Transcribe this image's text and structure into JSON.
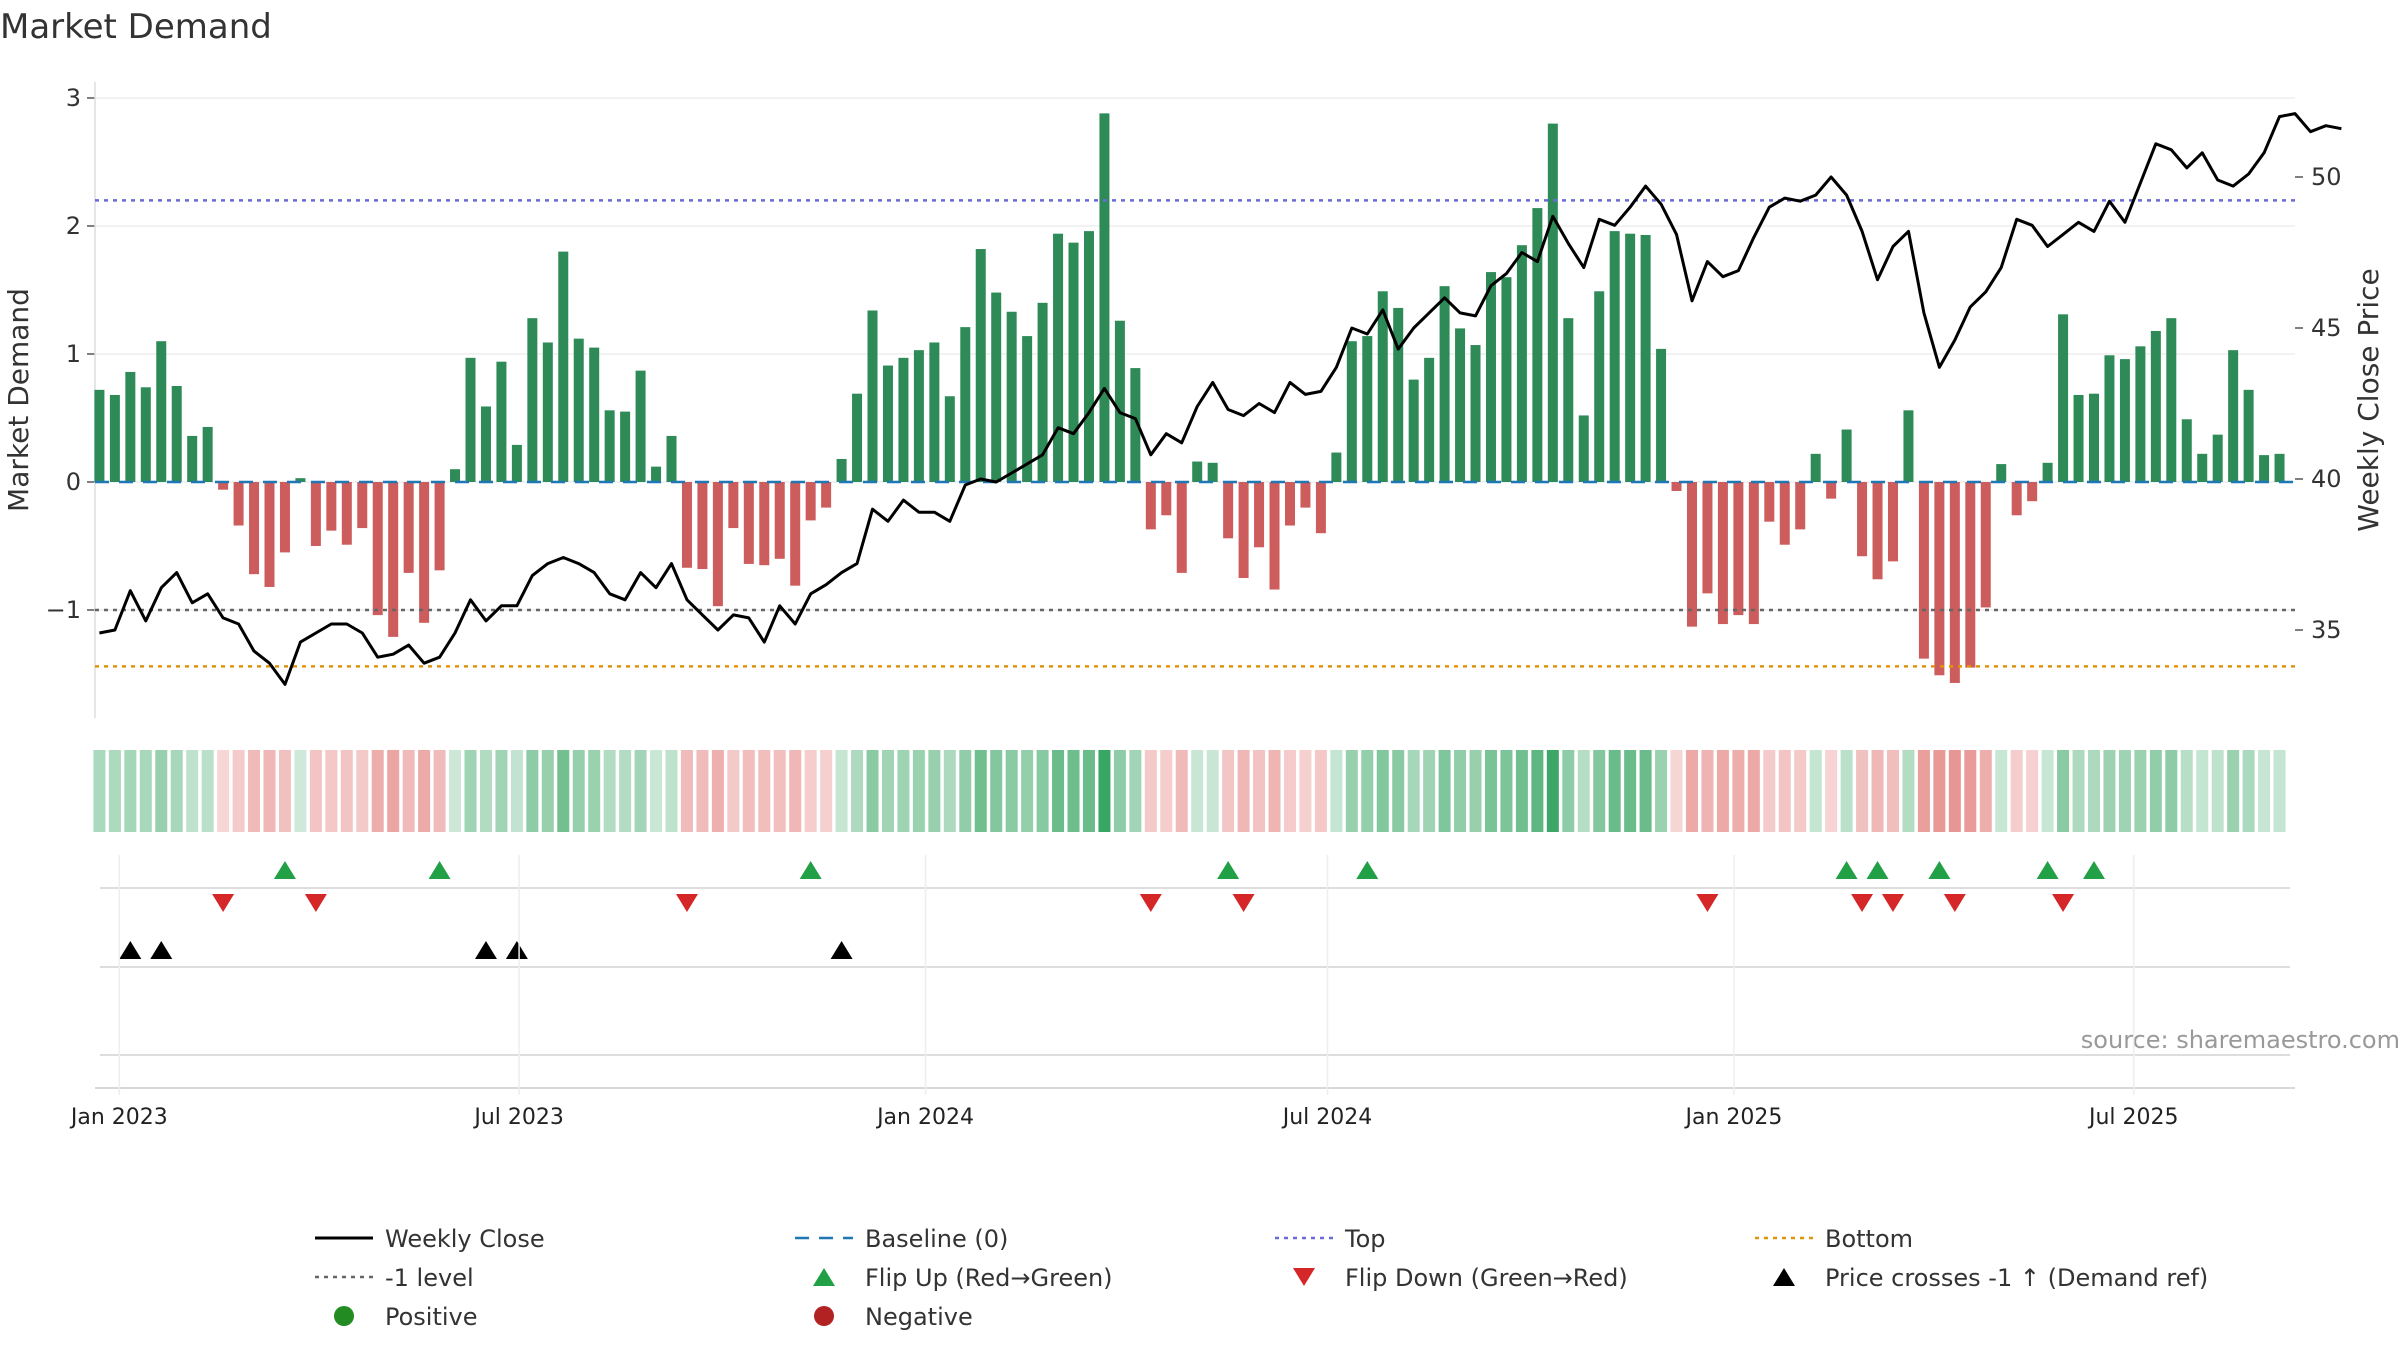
{
  "chart_data": {
    "type": "bar",
    "title": "Market Demand",
    "ylabel": "Market Demand",
    "ylabel_right": "Weekly Close Price",
    "ylim": [
      -1.85,
      3.1
    ],
    "ylim_right": [
      31.9,
      52.7
    ],
    "yticks": [
      -1,
      0,
      1,
      2,
      3
    ],
    "yticks_right": [
      35,
      40,
      45,
      50
    ],
    "xlim": [
      "2022-12-21",
      "2025-09-12"
    ],
    "xticks": [
      {
        "date": "2023-01-01",
        "label": "Jan 2023"
      },
      {
        "date": "2023-07-01",
        "label": "Jul 2023"
      },
      {
        "date": "2024-01-01",
        "label": "Jan 2024"
      },
      {
        "date": "2024-07-01",
        "label": "Jul 2024"
      },
      {
        "date": "2025-01-01",
        "label": "Jan 2025"
      },
      {
        "date": "2025-07-01",
        "label": "Jul 2025"
      }
    ],
    "start_date": "2022-12-23",
    "week_days": 7,
    "reference_lines": {
      "top": 2.2,
      "bottom": -1.44,
      "minus_one": -1.0,
      "baseline": 0
    },
    "series": [
      {
        "name": "Market Demand",
        "values": [
          0.72,
          0.68,
          0.86,
          0.74,
          1.1,
          0.75,
          0.36,
          0.43,
          -0.06,
          -0.34,
          -0.72,
          -0.82,
          -0.55,
          0.03,
          -0.5,
          -0.38,
          -0.49,
          -0.36,
          -1.04,
          -1.21,
          -0.71,
          -1.1,
          -0.69,
          0.1,
          0.97,
          0.59,
          0.94,
          0.29,
          1.28,
          1.09,
          1.8,
          1.12,
          1.05,
          0.56,
          0.55,
          0.87,
          0.12,
          0.36,
          -0.67,
          -0.68,
          -0.97,
          -0.36,
          -0.64,
          -0.65,
          -0.6,
          -0.81,
          -0.3,
          -0.2,
          0.18,
          0.69,
          1.34,
          0.91,
          0.97,
          1.03,
          1.09,
          0.67,
          1.21,
          1.82,
          1.48,
          1.33,
          1.14,
          1.4,
          1.94,
          1.87,
          1.96,
          2.88,
          1.26,
          0.89,
          -0.37,
          -0.26,
          -0.71,
          0.16,
          0.15,
          -0.44,
          -0.75,
          -0.51,
          -0.84,
          -0.34,
          -0.2,
          -0.4,
          0.23,
          1.1,
          1.14,
          1.49,
          1.36,
          0.8,
          0.97,
          1.53,
          1.2,
          1.07,
          1.64,
          1.6,
          1.85,
          2.14,
          2.8,
          1.28,
          0.52,
          1.49,
          1.96,
          1.94,
          1.93,
          1.04,
          -0.07,
          -1.13,
          -0.87,
          -1.11,
          -1.04,
          -1.11,
          -0.31,
          -0.49,
          -0.37,
          0.22,
          -0.13,
          0.41,
          -0.58,
          -0.76,
          -0.62,
          0.56,
          -1.38,
          -1.51,
          -1.57,
          -1.45,
          -0.98,
          0.14,
          -0.26,
          -0.15,
          0.15,
          1.31,
          0.68,
          0.69,
          0.99,
          0.96,
          1.06,
          1.18,
          1.28,
          0.49,
          0.22,
          0.37,
          1.03,
          0.72,
          0.21,
          0.22
        ]
      },
      {
        "name": "Weekly Close",
        "axis": "right",
        "values": [
          34.9,
          35.0,
          36.3,
          35.3,
          36.4,
          36.9,
          35.9,
          36.2,
          35.4,
          35.2,
          34.3,
          33.9,
          33.2,
          34.6,
          34.9,
          35.2,
          35.2,
          34.9,
          34.1,
          34.2,
          34.5,
          33.9,
          34.1,
          34.9,
          36.0,
          35.3,
          35.8,
          35.8,
          36.8,
          37.2,
          37.4,
          37.2,
          36.9,
          36.2,
          36.0,
          36.9,
          36.4,
          37.2,
          36.0,
          35.5,
          35.0,
          35.5,
          35.4,
          34.6,
          35.8,
          35.2,
          36.2,
          36.5,
          36.9,
          37.2,
          39.0,
          38.6,
          39.3,
          38.9,
          38.9,
          38.6,
          39.8,
          40.0,
          39.9,
          40.2,
          40.5,
          40.8,
          41.7,
          41.5,
          42.2,
          43.0,
          42.2,
          42.0,
          40.8,
          41.5,
          41.2,
          42.4,
          43.2,
          42.3,
          42.1,
          42.5,
          42.2,
          43.2,
          42.8,
          42.9,
          43.7,
          45.0,
          44.8,
          45.6,
          44.3,
          45.0,
          45.5,
          46.0,
          45.5,
          45.4,
          46.4,
          46.8,
          47.5,
          47.2,
          48.7,
          47.8,
          47.0,
          48.6,
          48.4,
          49.0,
          49.7,
          49.1,
          48.1,
          45.9,
          47.2,
          46.7,
          46.9,
          48.0,
          49.0,
          49.3,
          49.2,
          49.4,
          50.0,
          49.4,
          48.2,
          46.6,
          47.7,
          48.2,
          45.5,
          43.7,
          44.6,
          45.7,
          46.2,
          47.0,
          48.6,
          48.4,
          47.7,
          48.1,
          48.5,
          48.2,
          49.2,
          48.5,
          49.8,
          51.1,
          50.9,
          50.3,
          50.8,
          49.9,
          49.7,
          50.1,
          50.8,
          52.0,
          52.1,
          51.5,
          51.7,
          51.6
        ]
      }
    ],
    "color_strip": {
      "positive_color": "#2ca05a",
      "negative_color": "#d9534f"
    },
    "markers": {
      "flip_up": [
        "2023-03-17",
        "2023-05-26",
        "2023-11-10",
        "2024-05-17",
        "2024-07-19",
        "2025-02-21",
        "2025-03-07",
        "2025-04-04",
        "2025-05-23",
        "2025-06-13"
      ],
      "flip_down": [
        "2023-02-17",
        "2023-03-31",
        "2023-09-15",
        "2024-04-12",
        "2024-05-24",
        "2024-12-20",
        "2025-02-28",
        "2025-03-14",
        "2025-04-11",
        "2025-05-30"
      ],
      "price_crosses": [
        "2023-01-06",
        "2023-01-20",
        "2023-06-16",
        "2023-06-30",
        "2023-11-24"
      ]
    },
    "colors": {
      "positive_bar": "#2e8b57",
      "negative_bar": "#cd5c5c",
      "weekly_close": "#000000",
      "baseline": "#1f77b4",
      "top": "#6a6ad8",
      "bottom": "#e0940c",
      "minus_one": "#666666",
      "flip_up": "#22a045",
      "flip_down": "#d62728",
      "price_crosses": "#000000",
      "positive_dot": "#228b22",
      "negative_dot": "#b22222"
    },
    "legend": [
      {
        "label": "Weekly Close",
        "kind": "solid-line",
        "color": "#000000"
      },
      {
        "label": "Baseline (0)",
        "kind": "dash-line",
        "color": "#1f77b4"
      },
      {
        "label": "Top",
        "kind": "dot-line",
        "color": "#6a6ad8"
      },
      {
        "label": "Bottom",
        "kind": "dot-line",
        "color": "#e0940c"
      },
      {
        "label": "-1 level",
        "kind": "dot-line",
        "color": "#666666"
      },
      {
        "label": "Flip Up (Red→Green)",
        "kind": "tri-up",
        "color": "#22a045"
      },
      {
        "label": "Flip Down (Green→Red)",
        "kind": "tri-down",
        "color": "#d62728"
      },
      {
        "label": "Price crosses -1 ↑ (Demand ref)",
        "kind": "tri-up",
        "color": "#000000"
      },
      {
        "label": "Positive",
        "kind": "dot",
        "color": "#228b22"
      },
      {
        "label": "Negative",
        "kind": "dot",
        "color": "#b22222"
      }
    ],
    "source": "source: sharemaestro.com"
  }
}
